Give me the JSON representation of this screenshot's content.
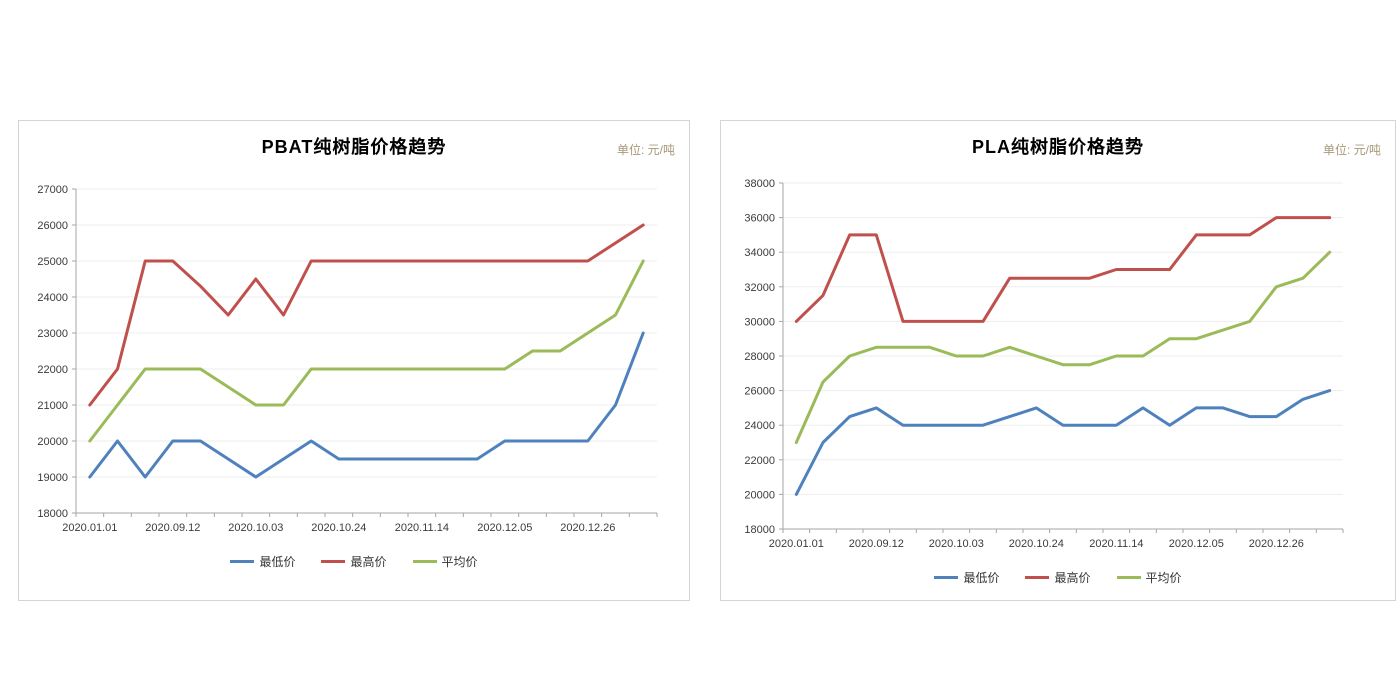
{
  "colors": {
    "min_series": "#4F81BD",
    "max_series": "#C0504D",
    "avg_series": "#9BBB59",
    "grid": "#ededed",
    "axis": "#a6a6a6",
    "tick_text": "#3b3b3b",
    "unit_text": "#a89878"
  },
  "chart_data": [
    {
      "type": "line",
      "id": "pbat",
      "title": "PBAT纯树脂价格趋势",
      "unit_label": "单位: 元/吨",
      "ylim": [
        18000,
        27000
      ],
      "y_tick_step": 1000,
      "y_tick_labels": [
        "18000",
        "19000",
        "20000",
        "21000",
        "22000",
        "23000",
        "24000",
        "25000",
        "26000",
        "27000"
      ],
      "x_tick_labels": [
        "2020.01.01",
        "2020.09.12",
        "2020.10.03",
        "2020.10.24",
        "2020.11.14",
        "2020.12.05",
        "2020.12.26"
      ],
      "x_label_every": 3,
      "n_points": 21,
      "grid": true,
      "legend_position": "bottom",
      "series": [
        {
          "key": "min",
          "name": "最低价",
          "color": "#4F81BD",
          "values": [
            19000,
            20000,
            19000,
            20000,
            20000,
            19500,
            19000,
            19500,
            20000,
            19500,
            19500,
            19500,
            19500,
            19500,
            19500,
            20000,
            20000,
            20000,
            20000,
            21000,
            23000
          ]
        },
        {
          "key": "max",
          "name": "最高价",
          "color": "#C0504D",
          "values": [
            21000,
            22000,
            25000,
            25000,
            24300,
            23500,
            24500,
            23500,
            25000,
            25000,
            25000,
            25000,
            25000,
            25000,
            25000,
            25000,
            25000,
            25000,
            25000,
            25500,
            26000
          ]
        },
        {
          "key": "avg",
          "name": "平均价",
          "color": "#9BBB59",
          "values": [
            20000,
            21000,
            22000,
            22000,
            22000,
            21500,
            21000,
            21000,
            22000,
            22000,
            22000,
            22000,
            22000,
            22000,
            22000,
            22000,
            22500,
            22500,
            23000,
            23500,
            25000
          ]
        }
      ]
    },
    {
      "type": "line",
      "id": "pla",
      "title": "PLA纯树脂价格趋势",
      "unit_label": "单位: 元/吨",
      "ylim": [
        18000,
        38000
      ],
      "y_tick_step": 2000,
      "y_tick_labels": [
        "18000",
        "20000",
        "22000",
        "24000",
        "26000",
        "28000",
        "30000",
        "32000",
        "34000",
        "36000",
        "38000"
      ],
      "x_tick_labels": [
        "2020.01.01",
        "2020.09.12",
        "2020.10.03",
        "2020.10.24",
        "2020.11.14",
        "2020.12.05",
        "2020.12.26"
      ],
      "x_label_every": 3,
      "n_points": 21,
      "grid": true,
      "legend_position": "bottom",
      "series": [
        {
          "key": "min",
          "name": "最低价",
          "color": "#4F81BD",
          "values": [
            20000,
            23000,
            24500,
            25000,
            24000,
            24000,
            24000,
            24000,
            24500,
            25000,
            24000,
            24000,
            24000,
            25000,
            24000,
            25000,
            25000,
            24500,
            24500,
            25500,
            26000
          ]
        },
        {
          "key": "max",
          "name": "最高价",
          "color": "#C0504D",
          "values": [
            30000,
            31500,
            35000,
            35000,
            30000,
            30000,
            30000,
            30000,
            32500,
            32500,
            32500,
            32500,
            33000,
            33000,
            33000,
            35000,
            35000,
            35000,
            36000,
            36000,
            36000
          ]
        },
        {
          "key": "avg",
          "name": "平均价",
          "color": "#9BBB59",
          "values": [
            23000,
            26500,
            28000,
            28500,
            28500,
            28500,
            28000,
            28000,
            28500,
            28000,
            27500,
            27500,
            28000,
            28000,
            29000,
            29000,
            29500,
            30000,
            32000,
            32500,
            34000
          ]
        }
      ]
    }
  ]
}
